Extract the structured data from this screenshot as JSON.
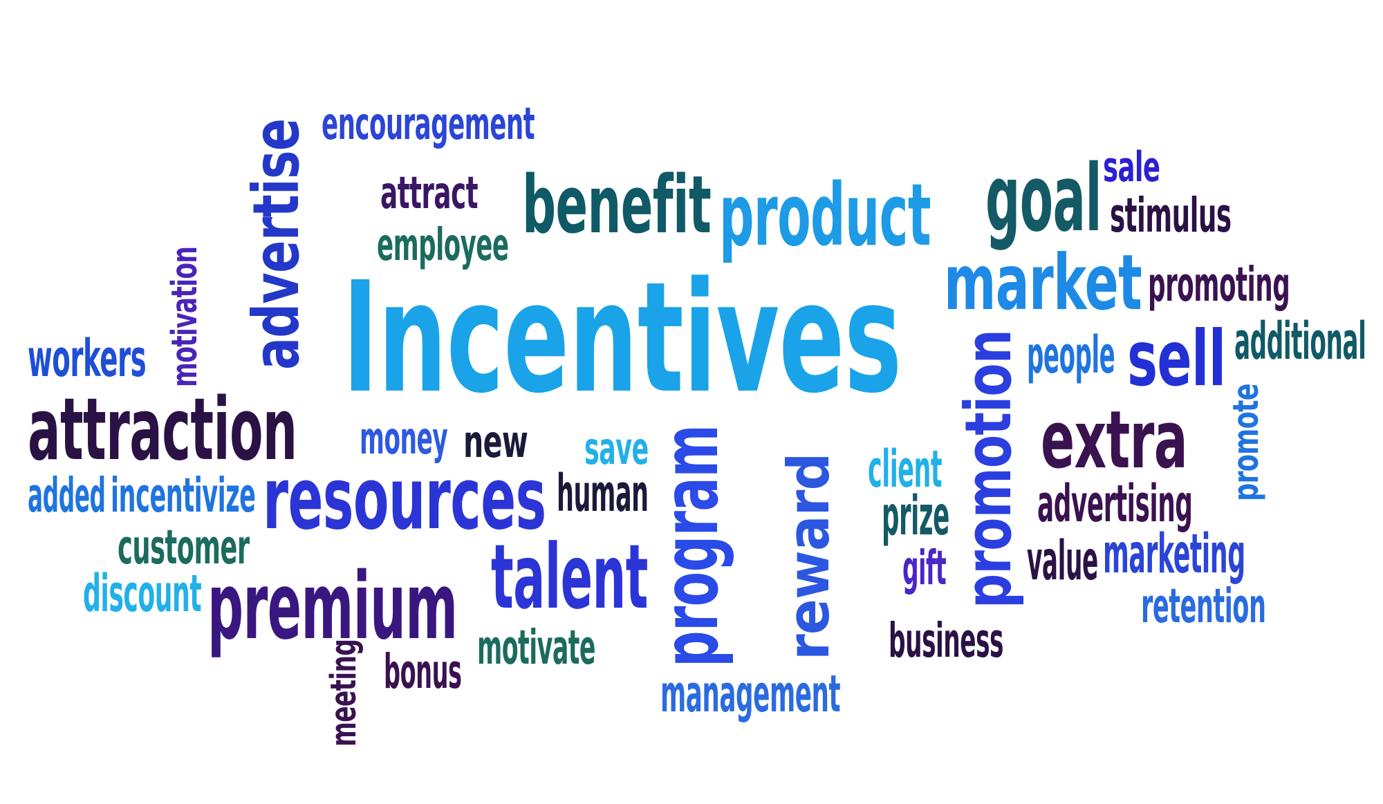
{
  "cloud": {
    "words": [
      {
        "text": "Incentives",
        "color": "#1aa3e8",
        "rotated": false
      },
      {
        "text": "encouragement",
        "color": "#2b45d6",
        "rotated": false
      },
      {
        "text": "advertise",
        "color": "#2338c9",
        "rotated": true
      },
      {
        "text": "attract",
        "color": "#3b1666",
        "rotated": false
      },
      {
        "text": "benefit",
        "color": "#0f5a66",
        "rotated": false
      },
      {
        "text": "product",
        "color": "#1e9be6",
        "rotated": false
      },
      {
        "text": "goal",
        "color": "#145a66",
        "rotated": false
      },
      {
        "text": "sale",
        "color": "#2c1fd4",
        "rotated": false
      },
      {
        "text": "stimulus",
        "color": "#2a1245",
        "rotated": false
      },
      {
        "text": "employee",
        "color": "#1b6b5e",
        "rotated": false
      },
      {
        "text": "market",
        "color": "#1e8ae6",
        "rotated": false
      },
      {
        "text": "promoting",
        "color": "#3a1250",
        "rotated": false
      },
      {
        "text": "motivation",
        "color": "#4a25b8",
        "rotated": true
      },
      {
        "text": "workers",
        "color": "#1f4fd6",
        "rotated": false
      },
      {
        "text": "people",
        "color": "#1f74e0",
        "rotated": false
      },
      {
        "text": "sell",
        "color": "#2330d6",
        "rotated": false
      },
      {
        "text": "additional",
        "color": "#0f5a66",
        "rotated": false
      },
      {
        "text": "attraction",
        "color": "#2a1245",
        "rotated": false
      },
      {
        "text": "money",
        "color": "#2d5ae0",
        "rotated": false
      },
      {
        "text": "new",
        "color": "#1a1a3a",
        "rotated": false
      },
      {
        "text": "save",
        "color": "#22b0e8",
        "rotated": false
      },
      {
        "text": "extra",
        "color": "#3a1250",
        "rotated": false
      },
      {
        "text": "promote",
        "color": "#1f74e0",
        "rotated": true
      },
      {
        "text": "client",
        "color": "#22b0e8",
        "rotated": false
      },
      {
        "text": "promotion",
        "color": "#2b3fe0",
        "rotated": true
      },
      {
        "text": "program",
        "color": "#2a4be8",
        "rotated": true
      },
      {
        "text": "reward",
        "color": "#2c57e0",
        "rotated": true
      },
      {
        "text": "added",
        "color": "#1f74e0",
        "rotated": false
      },
      {
        "text": "incentivize",
        "color": "#1f74e0",
        "rotated": false
      },
      {
        "text": "resources",
        "color": "#2b35d6",
        "rotated": false
      },
      {
        "text": "human",
        "color": "#1a1a3a",
        "rotated": false
      },
      {
        "text": "prize",
        "color": "#145a66",
        "rotated": false
      },
      {
        "text": "advertising",
        "color": "#3a1250",
        "rotated": false
      },
      {
        "text": "customer",
        "color": "#1b6b5e",
        "rotated": false
      },
      {
        "text": "talent",
        "color": "#2b35d6",
        "rotated": false
      },
      {
        "text": "gift",
        "color": "#4a25c8",
        "rotated": false
      },
      {
        "text": "value",
        "color": "#2a1245",
        "rotated": false
      },
      {
        "text": "marketing",
        "color": "#2b45d6",
        "rotated": false
      },
      {
        "text": "discount",
        "color": "#22b0e8",
        "rotated": false
      },
      {
        "text": "premium",
        "color": "#3a1780",
        "rotated": false
      },
      {
        "text": "retention",
        "color": "#2b6be0",
        "rotated": false
      },
      {
        "text": "motivate",
        "color": "#1b6b5e",
        "rotated": false
      },
      {
        "text": "business",
        "color": "#2a1245",
        "rotated": false
      },
      {
        "text": "meeting",
        "color": "#3a1250",
        "rotated": true
      },
      {
        "text": "bonus",
        "color": "#3a1250",
        "rotated": false
      },
      {
        "text": "management",
        "color": "#2b6be0",
        "rotated": false
      }
    ]
  }
}
